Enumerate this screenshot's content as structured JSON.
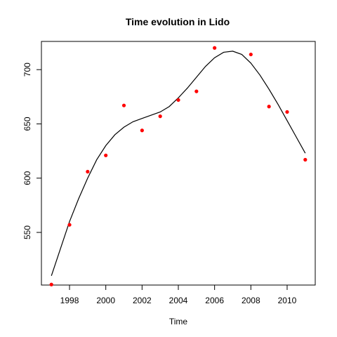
{
  "chart_data": {
    "type": "scatter",
    "title": "Time evolution in Lido",
    "xlabel": "Time",
    "ylabel": "",
    "xlim": [
      1996.45,
      2011.55
    ],
    "ylim": [
      501.5,
      726.0
    ],
    "x_ticks": [
      1998,
      2000,
      2002,
      2004,
      2006,
      2008,
      2010
    ],
    "x_tick_labels": [
      "1998",
      "2000",
      "2002",
      "2004",
      "2006",
      "2008",
      "2010"
    ],
    "y_ticks": [
      550,
      600,
      650,
      700
    ],
    "y_tick_labels": [
      "550",
      "600",
      "650",
      "700"
    ],
    "grid": false,
    "series": [
      {
        "kind": "points",
        "color": "#ff0000",
        "x": [
          1997,
          1998,
          1999,
          2000,
          2001,
          2002,
          2003,
          2004,
          2005,
          2006,
          2007,
          2008,
          2009,
          2010,
          2011
        ],
        "y": [
          502,
          557,
          606,
          621,
          667,
          644,
          657,
          672,
          680,
          720,
          null,
          714,
          666,
          661,
          617
        ]
      },
      {
        "kind": "smooth-line",
        "color": "#000000",
        "x": [
          1997,
          1997.5,
          1998,
          1998.5,
          1999,
          1999.5,
          2000,
          2000.5,
          2001,
          2001.5,
          2002,
          2002.5,
          2003,
          2003.5,
          2004,
          2004.5,
          2005,
          2005.5,
          2006,
          2006.5,
          2007,
          2007.5,
          2008,
          2008.5,
          2009,
          2009.5,
          2010,
          2010.5,
          2011
        ],
        "y": [
          510,
          535,
          560,
          581,
          600,
          617,
          630,
          640,
          647,
          652,
          655,
          658,
          661,
          666,
          674,
          683,
          693,
          703,
          711,
          716,
          717,
          714,
          706,
          695,
          682,
          668,
          653,
          638,
          623
        ]
      }
    ]
  }
}
